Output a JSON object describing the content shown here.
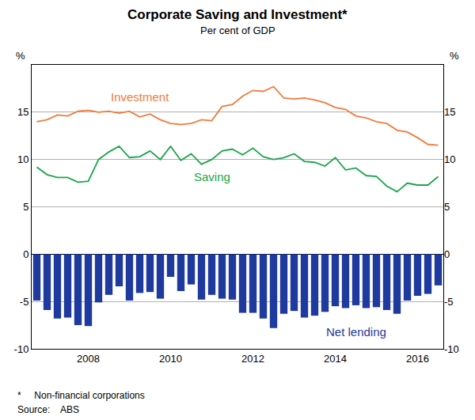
{
  "chart_data": {
    "type": "bar",
    "title": "Corporate Saving and Investment*",
    "subtitle": "Per cent of GDP",
    "ylabel": "%",
    "y2label": "%",
    "footnote": "*     Non-financial corporations",
    "source": "Source:    ABS",
    "categories": [
      null,
      null,
      null,
      null,
      null,
      "2008",
      null,
      null,
      null,
      null,
      null,
      null,
      null,
      "2010",
      null,
      null,
      null,
      null,
      null,
      null,
      null,
      "2012",
      null,
      null,
      null,
      null,
      null,
      null,
      null,
      "2014",
      null,
      null,
      null,
      null,
      null,
      null,
      null,
      "2016",
      null,
      null
    ],
    "series": [
      {
        "name": "Net lending",
        "type": "bar",
        "color": "#1f3a9e",
        "values": [
          -4.9,
          -5.9,
          -6.8,
          -6.7,
          -7.5,
          -7.6,
          -5.1,
          -4.3,
          -3.4,
          -4.9,
          -4.1,
          -4.0,
          -4.7,
          -2.4,
          -3.9,
          -3.2,
          -4.8,
          -4.3,
          -4.7,
          -4.8,
          -6.2,
          -6.2,
          -6.8,
          -7.8,
          -6.3,
          -6.0,
          -6.7,
          -6.5,
          -6.1,
          -5.5,
          -5.7,
          -5.4,
          -5.7,
          -5.6,
          -5.9,
          -6.3,
          -4.9,
          -4.4,
          -4.2,
          -3.3
        ]
      },
      {
        "name": "Investment",
        "type": "line",
        "color": "#f47a3a",
        "values": [
          14.0,
          14.2,
          14.7,
          14.6,
          15.1,
          15.2,
          15.0,
          15.1,
          14.9,
          15.1,
          14.5,
          14.8,
          14.2,
          13.8,
          13.7,
          13.8,
          14.2,
          14.1,
          15.6,
          15.8,
          16.7,
          17.3,
          17.2,
          17.7,
          16.5,
          16.4,
          16.5,
          16.3,
          16.0,
          15.5,
          15.3,
          14.6,
          14.4,
          14.0,
          13.8,
          13.1,
          12.9,
          12.3,
          11.6,
          11.5
        ]
      },
      {
        "name": "Saving",
        "type": "line",
        "color": "#1aa64a",
        "values": [
          9.2,
          8.4,
          8.1,
          8.1,
          7.6,
          7.7,
          10.0,
          10.8,
          11.4,
          10.2,
          10.3,
          10.9,
          10.0,
          11.4,
          9.9,
          10.6,
          9.5,
          10.0,
          10.9,
          11.1,
          10.5,
          11.2,
          10.3,
          10.0,
          10.2,
          10.6,
          9.8,
          9.7,
          9.3,
          10.2,
          8.9,
          9.1,
          8.3,
          8.2,
          7.2,
          6.6,
          7.5,
          7.3,
          7.3,
          8.2
        ]
      }
    ],
    "ylim": [
      -10,
      20
    ],
    "yticks": [
      -10,
      -5,
      0,
      5,
      10,
      15
    ],
    "y2lim": [
      -10,
      20
    ],
    "y2ticks": [
      -10,
      -5,
      0,
      5,
      10,
      15
    ],
    "grid": true
  }
}
